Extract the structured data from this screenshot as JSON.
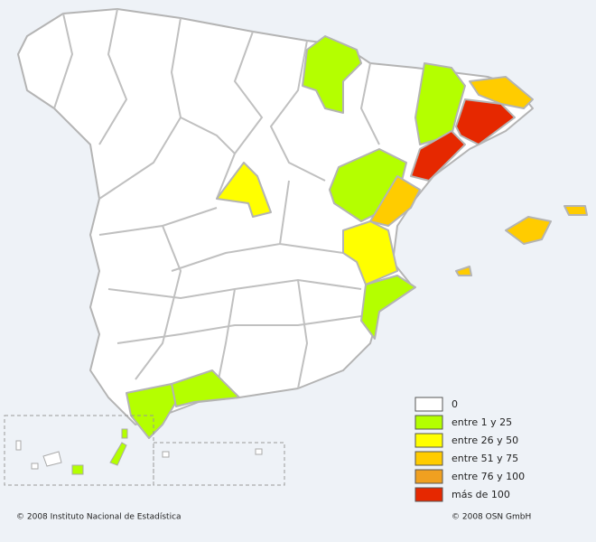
{
  "legend": {
    "items": [
      {
        "label": "0",
        "color": "#ffffff"
      },
      {
        "label": "entre 1 y 25",
        "color": "#b4ff00"
      },
      {
        "label": "entre 26 y 50",
        "color": "#ffff00"
      },
      {
        "label": "entre 51 y 75",
        "color": "#ffcc00"
      },
      {
        "label": "entre 76 y 100",
        "color": "#f0a020"
      },
      {
        "label": "más de 100",
        "color": "#e62800"
      }
    ]
  },
  "footer": {
    "left": "© 2008 Instituto Nacional de Estadística",
    "right": "© 2008 OSN GmbH"
  }
}
